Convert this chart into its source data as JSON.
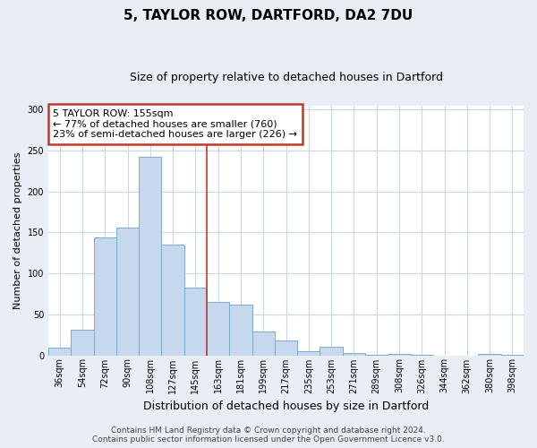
{
  "title": "5, TAYLOR ROW, DARTFORD, DA2 7DU",
  "subtitle": "Size of property relative to detached houses in Dartford",
  "xlabel": "Distribution of detached houses by size in Dartford",
  "ylabel": "Number of detached properties",
  "categories": [
    "36sqm",
    "54sqm",
    "72sqm",
    "90sqm",
    "108sqm",
    "127sqm",
    "145sqm",
    "163sqm",
    "181sqm",
    "199sqm",
    "217sqm",
    "235sqm",
    "253sqm",
    "271sqm",
    "289sqm",
    "308sqm",
    "326sqm",
    "344sqm",
    "362sqm",
    "380sqm",
    "398sqm"
  ],
  "values": [
    9,
    31,
    144,
    156,
    242,
    135,
    83,
    65,
    62,
    29,
    18,
    5,
    10,
    3,
    1,
    2,
    1,
    0,
    0,
    2,
    1
  ],
  "bar_color": "#c5d8ed",
  "bar_edge_color": "#7aaecb",
  "ylim": [
    0,
    305
  ],
  "yticks": [
    0,
    50,
    100,
    150,
    200,
    250,
    300
  ],
  "property_label": "5 TAYLOR ROW: 155sqm",
  "annotation_line1": "← 77% of detached houses are smaller (760)",
  "annotation_line2": "23% of semi-detached houses are larger (226) →",
  "annotation_box_color": "#c0392b",
  "vline_color": "#c0392b",
  "vline_x_index": 6.5,
  "footer_line1": "Contains HM Land Registry data © Crown copyright and database right 2024.",
  "footer_line2": "Contains public sector information licensed under the Open Government Licence v3.0.",
  "bg_color": "#e8eef4",
  "plot_bg_color": "#ffffff",
  "grid_color": "#c8d8e8",
  "title_fontsize": 11,
  "subtitle_fontsize": 9,
  "ylabel_fontsize": 8,
  "xlabel_fontsize": 9,
  "tick_fontsize": 7,
  "annotation_fontsize": 8,
  "footer_fontsize": 6.5
}
